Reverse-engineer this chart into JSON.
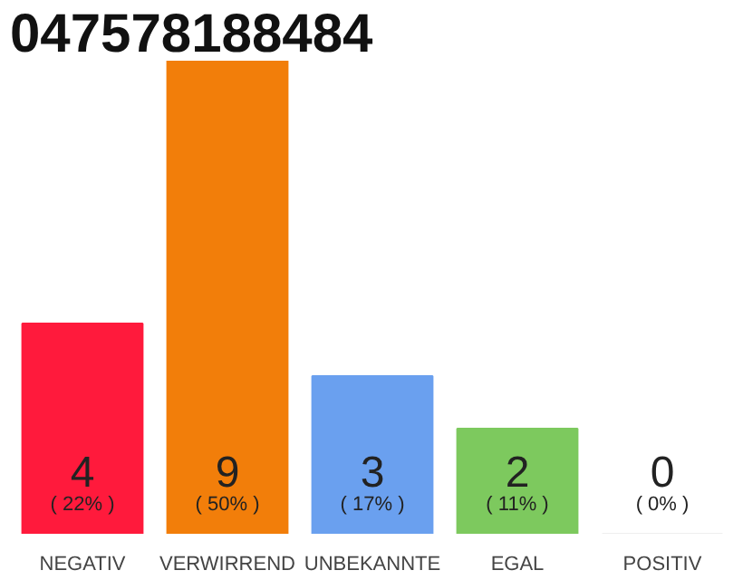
{
  "chart_data": {
    "type": "bar",
    "title": "047578188484",
    "categories": [
      "NEGATIV",
      "VERWIRREND",
      "UNBEKANNTE",
      "EGAL",
      "POSITIV"
    ],
    "values": [
      4,
      9,
      3,
      2,
      0
    ],
    "colors": [
      "#ff1a3c",
      "#f27e0a",
      "#6aa0ef",
      "#7dc95e",
      "#eeeeee"
    ],
    "ylim": [
      0,
      9
    ],
    "data_labels": true,
    "annotations": [
      "( 22% )",
      "( 50% )",
      "( 17% )",
      "( 11% )",
      "( 0% )"
    ]
  }
}
